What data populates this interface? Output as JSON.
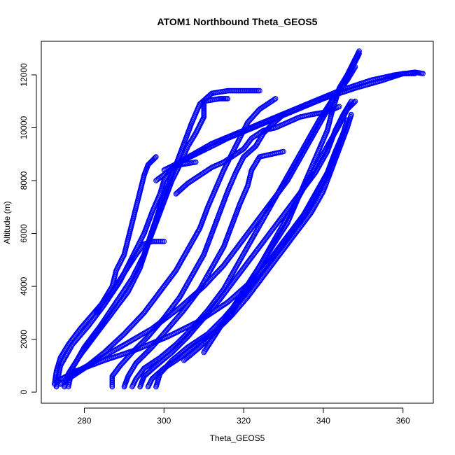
{
  "chart_data": {
    "type": "scatter",
    "title": "ATOM1 Northbound Theta_GEOS5",
    "xlabel": "Theta_GEOS5",
    "ylabel": "Altitude (m)",
    "xlim": [
      269.2,
      367.6
    ],
    "ylim": [
      -420,
      13270
    ],
    "xticks": [
      280,
      300,
      320,
      340,
      360
    ],
    "yticks": [
      0,
      2000,
      4000,
      6000,
      8000,
      10000,
      12000
    ],
    "grid": false,
    "legend": "none",
    "marker": "open-circle",
    "color": "#0000ff",
    "series": [
      {
        "points": [
          [
            272.5,
            300
          ],
          [
            273,
            800
          ],
          [
            274,
            1300
          ],
          [
            276,
            1800
          ],
          [
            279,
            2400
          ],
          [
            283,
            3100
          ],
          [
            287,
            3800
          ],
          [
            290,
            4500
          ],
          [
            293,
            5200
          ],
          [
            295,
            5600
          ],
          [
            297,
            5700
          ],
          [
            300,
            5700
          ]
        ]
      },
      {
        "points": [
          [
            273,
            200
          ],
          [
            274,
            1000
          ],
          [
            277,
            1800
          ],
          [
            281,
            2500
          ],
          [
            285,
            3300
          ],
          [
            289,
            4200
          ],
          [
            292,
            5100
          ],
          [
            295,
            6000
          ],
          [
            297,
            6800
          ],
          [
            299,
            7500
          ],
          [
            300,
            8000
          ],
          [
            302,
            8500
          ],
          [
            304,
            8600
          ],
          [
            308,
            8700
          ]
        ]
      },
      {
        "points": [
          [
            275,
            200
          ],
          [
            276,
            700
          ],
          [
            279,
            1400
          ],
          [
            283,
            2200
          ],
          [
            287,
            3000
          ],
          [
            291,
            3800
          ],
          [
            294,
            4700
          ],
          [
            296,
            5600
          ],
          [
            298,
            6400
          ],
          [
            300,
            7200
          ],
          [
            302,
            8000
          ],
          [
            304,
            8600
          ],
          [
            306,
            9300
          ],
          [
            308,
            9800
          ],
          [
            310,
            10400
          ],
          [
            310,
            11000
          ],
          [
            314,
            11100
          ],
          [
            316,
            11100
          ]
        ]
      },
      {
        "points": [
          [
            276,
            200
          ],
          [
            277,
            900
          ],
          [
            280,
            1700
          ],
          [
            284,
            2500
          ],
          [
            288,
            3400
          ],
          [
            292,
            4300
          ],
          [
            295,
            5200
          ],
          [
            297,
            6100
          ],
          [
            299,
            7000
          ],
          [
            301,
            7800
          ],
          [
            303,
            8600
          ],
          [
            305,
            9400
          ],
          [
            307,
            10200
          ],
          [
            309,
            10900
          ],
          [
            312,
            11300
          ],
          [
            316,
            11400
          ],
          [
            320,
            11400
          ],
          [
            324,
            11400
          ]
        ]
      },
      {
        "points": [
          [
            287,
            200
          ],
          [
            287,
            600
          ],
          [
            289,
            1000
          ],
          [
            292,
            1500
          ],
          [
            296,
            2100
          ],
          [
            300,
            2800
          ],
          [
            304,
            3600
          ],
          [
            307,
            4400
          ],
          [
            310,
            5200
          ],
          [
            312,
            6000
          ],
          [
            314,
            6800
          ],
          [
            316,
            7600
          ],
          [
            318,
            8300
          ],
          [
            320,
            8900
          ],
          [
            323,
            9300
          ],
          [
            325,
            9800
          ],
          [
            327,
            10100
          ],
          [
            330,
            10500
          ]
        ]
      },
      {
        "points": [
          [
            290,
            200
          ],
          [
            291,
            600
          ],
          [
            293,
            1100
          ],
          [
            297,
            1700
          ],
          [
            301,
            2400
          ],
          [
            305,
            3100
          ],
          [
            309,
            3900
          ],
          [
            312,
            4700
          ],
          [
            315,
            5500
          ],
          [
            317,
            6300
          ],
          [
            319,
            7100
          ],
          [
            321,
            7800
          ],
          [
            322,
            8400
          ],
          [
            324,
            8900
          ],
          [
            327,
            9000
          ],
          [
            330,
            9100
          ]
        ]
      },
      {
        "points": [
          [
            292,
            200
          ],
          [
            293,
            500
          ],
          [
            295,
            900
          ],
          [
            299,
            1300
          ],
          [
            303,
            1800
          ],
          [
            307,
            2400
          ],
          [
            311,
            3100
          ],
          [
            315,
            3900
          ],
          [
            318,
            4700
          ],
          [
            321,
            5500
          ],
          [
            324,
            6300
          ],
          [
            327,
            7100
          ],
          [
            330,
            7900
          ],
          [
            333,
            8700
          ],
          [
            336,
            9500
          ],
          [
            339,
            10300
          ],
          [
            342,
            11000
          ],
          [
            345,
            11600
          ],
          [
            347,
            12200
          ],
          [
            349,
            12800
          ]
        ]
      },
      {
        "points": [
          [
            294,
            200
          ],
          [
            295,
            600
          ],
          [
            298,
            1000
          ],
          [
            302,
            1500
          ],
          [
            306,
            2100
          ],
          [
            310,
            2800
          ],
          [
            314,
            3500
          ],
          [
            318,
            4300
          ],
          [
            322,
            5100
          ],
          [
            326,
            5900
          ],
          [
            330,
            6700
          ],
          [
            334,
            7500
          ],
          [
            338,
            8300
          ],
          [
            341,
            9100
          ],
          [
            343,
            9900
          ],
          [
            345,
            10500
          ],
          [
            347,
            11000
          ]
        ]
      },
      {
        "points": [
          [
            296,
            200
          ],
          [
            297,
            500
          ],
          [
            300,
            900
          ],
          [
            304,
            1300
          ],
          [
            308,
            1800
          ],
          [
            313,
            2300
          ],
          [
            317,
            2900
          ],
          [
            321,
            3600
          ],
          [
            325,
            4400
          ],
          [
            329,
            5200
          ],
          [
            333,
            6000
          ],
          [
            337,
            6800
          ],
          [
            340,
            7600
          ],
          [
            342,
            8400
          ],
          [
            344,
            9200
          ],
          [
            346,
            10000
          ],
          [
            347,
            10500
          ]
        ]
      },
      {
        "points": [
          [
            298,
            200
          ],
          [
            299,
            700
          ],
          [
            302,
            1200
          ],
          [
            306,
            1700
          ],
          [
            311,
            2200
          ],
          [
            315,
            2800
          ],
          [
            319,
            3500
          ],
          [
            323,
            4300
          ],
          [
            327,
            5100
          ],
          [
            331,
            5900
          ],
          [
            335,
            6700
          ],
          [
            338,
            7500
          ],
          [
            341,
            8300
          ],
          [
            343,
            9100
          ],
          [
            345,
            9800
          ],
          [
            346,
            10300
          ]
        ]
      },
      {
        "points": [
          [
            273,
            400
          ],
          [
            278,
            800
          ],
          [
            285,
            1200
          ],
          [
            293,
            1600
          ],
          [
            301,
            2100
          ],
          [
            309,
            2700
          ],
          [
            316,
            3400
          ],
          [
            322,
            4200
          ],
          [
            327,
            5000
          ],
          [
            331,
            5800
          ],
          [
            335,
            6600
          ],
          [
            338,
            7400
          ],
          [
            341,
            8200
          ],
          [
            343,
            9000
          ],
          [
            345,
            9800
          ]
        ]
      },
      {
        "points": [
          [
            276,
            600
          ],
          [
            282,
            1100
          ],
          [
            289,
            1700
          ],
          [
            297,
            2400
          ],
          [
            304,
            3200
          ],
          [
            310,
            4000
          ],
          [
            315,
            4800
          ],
          [
            319,
            5600
          ],
          [
            323,
            6400
          ],
          [
            327,
            7200
          ],
          [
            331,
            8000
          ],
          [
            334,
            8800
          ],
          [
            337,
            9600
          ],
          [
            340,
            10400
          ],
          [
            343,
            11200
          ],
          [
            346,
            11800
          ],
          [
            348,
            12300
          ]
        ]
      },
      {
        "points": [
          [
            274,
            300
          ],
          [
            276,
            500
          ],
          [
            280,
            900
          ],
          [
            285,
            1500
          ],
          [
            290,
            2200
          ],
          [
            295,
            3000
          ],
          [
            299,
            3800
          ],
          [
            303,
            4600
          ],
          [
            306,
            5400
          ],
          [
            309,
            6200
          ],
          [
            311,
            7000
          ],
          [
            313,
            7700
          ],
          [
            315,
            8400
          ],
          [
            317,
            9000
          ],
          [
            319,
            9600
          ],
          [
            321,
            10200
          ],
          [
            324,
            10700
          ],
          [
            328,
            11100
          ]
        ]
      },
      {
        "points": [
          [
            298,
            8000
          ],
          [
            305,
            8800
          ],
          [
            312,
            9400
          ],
          [
            320,
            9900
          ],
          [
            328,
            10400
          ],
          [
            336,
            10900
          ],
          [
            344,
            11400
          ],
          [
            352,
            11800
          ],
          [
            358,
            12000
          ],
          [
            363,
            12100
          ],
          [
            365,
            12050
          ]
        ]
      },
      {
        "points": [
          [
            300,
            8400
          ],
          [
            308,
            9000
          ],
          [
            316,
            9600
          ],
          [
            324,
            10100
          ],
          [
            332,
            10600
          ],
          [
            340,
            11100
          ],
          [
            348,
            11500
          ],
          [
            355,
            11800
          ],
          [
            360,
            12050
          ],
          [
            363,
            12050
          ]
        ]
      },
      {
        "points": [
          [
            303,
            7500
          ],
          [
            306,
            7900
          ],
          [
            309,
            8200
          ],
          [
            312,
            8500
          ],
          [
            315,
            8700
          ],
          [
            318,
            9000
          ],
          [
            320,
            9200
          ],
          [
            322,
            9600
          ],
          [
            325,
            9900
          ],
          [
            328,
            10000
          ],
          [
            331,
            10200
          ],
          [
            334,
            10400
          ],
          [
            337,
            10500
          ],
          [
            341,
            10600
          ],
          [
            344,
            10800
          ]
        ]
      },
      {
        "points": [
          [
            283,
            3000
          ],
          [
            285,
            3500
          ],
          [
            287,
            4000
          ],
          [
            288,
            4600
          ],
          [
            290,
            5200
          ],
          [
            291,
            5800
          ],
          [
            292,
            6400
          ],
          [
            293,
            7000
          ],
          [
            294,
            7600
          ],
          [
            295,
            8200
          ],
          [
            296,
            8600
          ],
          [
            298,
            8900
          ]
        ]
      },
      {
        "points": [
          [
            310,
            1500
          ],
          [
            313,
            2200
          ],
          [
            316,
            2900
          ],
          [
            319,
            3600
          ],
          [
            322,
            4300
          ],
          [
            325,
            5000
          ],
          [
            328,
            5700
          ],
          [
            331,
            6400
          ],
          [
            333,
            7100
          ],
          [
            335,
            7800
          ],
          [
            337,
            8500
          ],
          [
            339,
            9200
          ],
          [
            341,
            9900
          ],
          [
            342,
            10500
          ],
          [
            343,
            11000
          ],
          [
            344,
            11500
          ],
          [
            346,
            12000
          ],
          [
            348,
            12600
          ],
          [
            349,
            12900
          ]
        ]
      },
      {
        "points": [
          [
            305,
            1200
          ],
          [
            309,
            1700
          ],
          [
            313,
            2300
          ],
          [
            317,
            3000
          ],
          [
            320,
            3700
          ],
          [
            323,
            4500
          ],
          [
            326,
            5300
          ],
          [
            329,
            6100
          ],
          [
            332,
            6900
          ],
          [
            335,
            7700
          ],
          [
            338,
            8500
          ],
          [
            341,
            9300
          ],
          [
            344,
            10100
          ],
          [
            346,
            10700
          ],
          [
            348,
            11000
          ]
        ]
      }
    ]
  }
}
